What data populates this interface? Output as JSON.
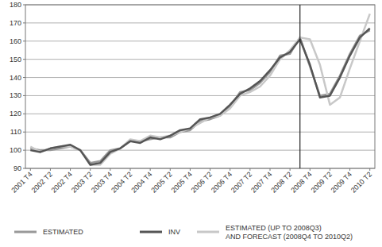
{
  "chart_data": {
    "type": "line",
    "categories": [
      "2001 T4",
      null,
      "2002 T2",
      null,
      "2002 T4",
      null,
      "2003 T2",
      null,
      "2003 T4",
      null,
      "2004 T2",
      null,
      "2004 T4",
      null,
      "2005 T2",
      null,
      "2005 T4",
      null,
      "2006 T2",
      null,
      "2006 T4",
      null,
      "2007 T2",
      null,
      "2007 T4",
      null,
      "2008 T2",
      null,
      "2008 T4",
      null,
      "2009 T2",
      null,
      "2009 T4",
      null,
      "2010 T2"
    ],
    "series": [
      {
        "name": "ESTIMATED",
        "color": "#999999",
        "values": [
          101,
          100,
          100,
          101,
          102,
          100,
          93,
          94,
          100,
          101,
          105,
          105,
          106,
          107,
          107,
          110,
          111,
          116,
          117,
          119,
          124,
          132,
          133,
          137,
          143,
          152,
          153,
          162,
          146,
          130,
          131,
          141,
          153,
          163,
          166
        ]
      },
      {
        "name": "INV",
        "color": "#555555",
        "values": [
          100,
          99,
          101,
          102,
          103,
          100,
          92,
          93,
          99,
          101,
          105,
          104,
          107,
          106,
          108,
          111,
          112,
          117,
          118,
          120,
          125,
          131,
          134,
          138,
          144,
          151,
          154,
          161,
          147,
          129,
          130,
          140,
          152,
          162,
          167
        ]
      },
      {
        "name": "ESTIMATED  (UP TO 2008Q3) AND FORECAST (2008Q4 TO 2010Q2)",
        "color": "#c8c8c8",
        "values": [
          102,
          99,
          101,
          102,
          102,
          100,
          92,
          92,
          98,
          101,
          106,
          105,
          108,
          107,
          108,
          110,
          112,
          115,
          118,
          119,
          123,
          130,
          132,
          135,
          141,
          150,
          155,
          162,
          161,
          147,
          125,
          129,
          145,
          160,
          175
        ]
      }
    ],
    "vline": 27,
    "ylim": [
      90,
      180
    ],
    "yticks": [
      90,
      100,
      110,
      120,
      130,
      140,
      150,
      160,
      170,
      180
    ],
    "grid": true,
    "legend": "bottom"
  }
}
